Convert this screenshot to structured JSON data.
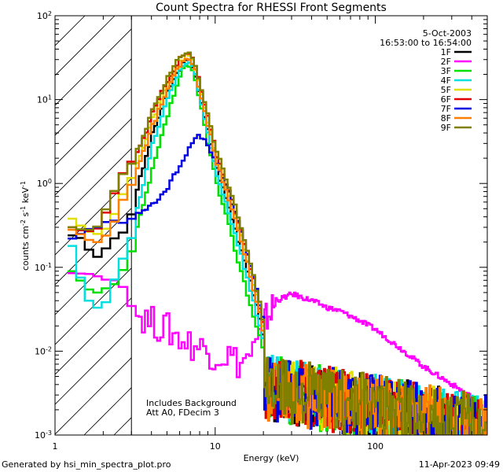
{
  "chart_data": {
    "type": "line",
    "title": "Count Spectra for RHESSI Front Segments",
    "xlabel": "Energy (keV)",
    "ylabel_main": "counts cm",
    "ylabel_sup1": "-2",
    "ylabel_mid1": " s",
    "ylabel_sup2": "-1",
    "ylabel_mid2": " keV",
    "ylabel_sup3": "-1",
    "xscale": "log",
    "yscale": "log",
    "xlim": [
      1,
      500
    ],
    "ylim": [
      0.001,
      100
    ],
    "x_ticks": [
      {
        "value": 1,
        "label": "1"
      },
      {
        "value": 10,
        "label": "10"
      },
      {
        "value": 100,
        "label": "100"
      }
    ],
    "y_ticks": [
      {
        "value": 0.001,
        "base": "10",
        "exp": "-3"
      },
      {
        "value": 0.01,
        "base": "10",
        "exp": "-2"
      },
      {
        "value": 0.1,
        "base": "10",
        "exp": "-1"
      },
      {
        "value": 1,
        "base": "10",
        "exp": "0"
      },
      {
        "value": 10,
        "base": "10",
        "exp": "1"
      },
      {
        "value": 100,
        "base": "10",
        "exp": "2"
      }
    ],
    "hatch_region_kev": [
      1,
      3
    ],
    "info_date": "5-Oct-2003",
    "info_time": "16:53:00 to 16:54:00",
    "annotation_line1": "Includes Background",
    "annotation_line2": "Att A0, FDecim 3",
    "series": [
      {
        "name": "1F",
        "color": "#000000",
        "base": [
          [
            1.2,
            0.24
          ],
          [
            1.4,
            0.22
          ],
          [
            1.6,
            0.14
          ],
          [
            1.8,
            0.13
          ],
          [
            2.0,
            0.18
          ],
          [
            2.3,
            0.24
          ],
          [
            2.6,
            0.27
          ],
          [
            3.0,
            0.6
          ],
          [
            3.4,
            1.3
          ],
          [
            4.0,
            4.0
          ],
          [
            5.0,
            13
          ],
          [
            6.0,
            25
          ],
          [
            6.6,
            30
          ],
          [
            7.2,
            24
          ],
          [
            8.0,
            9
          ],
          [
            9.0,
            3.5
          ],
          [
            10,
            1.5
          ],
          [
            12,
            0.5
          ],
          [
            14,
            0.18
          ],
          [
            16,
            0.08
          ],
          [
            18,
            0.03
          ],
          [
            20,
            0.012
          ]
        ]
      },
      {
        "name": "2F",
        "color": "#ff00ff",
        "base": [
          [
            1.2,
            0.085
          ],
          [
            1.6,
            0.083
          ],
          [
            2.0,
            0.07
          ],
          [
            2.4,
            0.07
          ],
          [
            2.8,
            0.035
          ],
          [
            3.2,
            0.028
          ],
          [
            4.0,
            0.022
          ],
          [
            5.0,
            0.018
          ],
          [
            6.0,
            0.014
          ],
          [
            7.0,
            0.012
          ],
          [
            8.0,
            0.011
          ],
          [
            10,
            0.009
          ],
          [
            12,
            0.009
          ],
          [
            14,
            0.007
          ],
          [
            16,
            0.009
          ],
          [
            18,
            0.012
          ],
          [
            20,
            0.022
          ],
          [
            24,
            0.04
          ],
          [
            30,
            0.048
          ],
          [
            40,
            0.04
          ],
          [
            50,
            0.033
          ],
          [
            60,
            0.03
          ],
          [
            80,
            0.023
          ],
          [
            100,
            0.018
          ],
          [
            150,
            0.01
          ],
          [
            200,
            0.0065
          ],
          [
            300,
            0.004
          ],
          [
            400,
            0.0028
          ],
          [
            480,
            0.0022
          ]
        ]
      },
      {
        "name": "3F",
        "color": "#00e000",
        "base": [
          [
            1.2,
            0.09
          ],
          [
            1.4,
            0.065
          ],
          [
            1.6,
            0.05
          ],
          [
            1.8,
            0.05
          ],
          [
            2.0,
            0.058
          ],
          [
            2.3,
            0.065
          ],
          [
            2.6,
            0.11
          ],
          [
            3.0,
            0.2
          ],
          [
            3.4,
            0.45
          ],
          [
            4.0,
            1.5
          ],
          [
            5.0,
            7
          ],
          [
            6.0,
            21
          ],
          [
            6.6,
            25
          ],
          [
            7.2,
            20
          ],
          [
            8.0,
            8
          ],
          [
            9.0,
            2.5
          ],
          [
            10,
            1.0
          ],
          [
            12,
            0.3
          ],
          [
            14,
            0.1
          ],
          [
            16,
            0.04
          ],
          [
            18,
            0.018
          ],
          [
            20,
            0.01
          ]
        ]
      },
      {
        "name": "4F",
        "color": "#00e0e0",
        "base": [
          [
            1.2,
            0.18
          ],
          [
            1.4,
            0.06
          ],
          [
            1.6,
            0.033
          ],
          [
            1.8,
            0.033
          ],
          [
            2.0,
            0.04
          ],
          [
            2.3,
            0.09
          ],
          [
            2.6,
            0.15
          ],
          [
            3.0,
            0.3
          ],
          [
            3.4,
            0.8
          ],
          [
            4.0,
            3.0
          ],
          [
            5.0,
            11
          ],
          [
            6.0,
            24
          ],
          [
            6.6,
            28
          ],
          [
            7.2,
            23
          ],
          [
            8.0,
            9
          ],
          [
            9.0,
            3.2
          ],
          [
            10,
            1.3
          ],
          [
            12,
            0.45
          ],
          [
            14,
            0.16
          ],
          [
            16,
            0.06
          ],
          [
            18,
            0.025
          ],
          [
            20,
            0.012
          ]
        ]
      },
      {
        "name": "5F",
        "color": "#e0e000",
        "base": [
          [
            1.2,
            0.38
          ],
          [
            1.4,
            0.3
          ],
          [
            1.6,
            0.25
          ],
          [
            1.8,
            0.25
          ],
          [
            2.0,
            0.3
          ],
          [
            2.3,
            0.5
          ],
          [
            2.6,
            0.9
          ],
          [
            3.0,
            1.4
          ],
          [
            3.4,
            2.5
          ],
          [
            4.0,
            6.0
          ],
          [
            5.0,
            16
          ],
          [
            6.0,
            30
          ],
          [
            6.6,
            34
          ],
          [
            7.2,
            28
          ],
          [
            8.0,
            12
          ],
          [
            9.0,
            4.5
          ],
          [
            10,
            2.0
          ],
          [
            12,
            0.7
          ],
          [
            14,
            0.26
          ],
          [
            16,
            0.1
          ],
          [
            18,
            0.04
          ],
          [
            20,
            0.015
          ]
        ]
      },
      {
        "name": "6F",
        "color": "#e00000",
        "base": [
          [
            1.2,
            0.3
          ],
          [
            1.4,
            0.27
          ],
          [
            1.6,
            0.27
          ],
          [
            1.8,
            0.3
          ],
          [
            2.0,
            0.5
          ],
          [
            2.3,
            0.9
          ],
          [
            2.6,
            1.6
          ],
          [
            3.0,
            2.0
          ],
          [
            3.4,
            3.0
          ],
          [
            4.0,
            7.0
          ],
          [
            5.0,
            18
          ],
          [
            6.0,
            32
          ],
          [
            6.6,
            36
          ],
          [
            7.2,
            30
          ],
          [
            8.0,
            13
          ],
          [
            9.0,
            5.0
          ],
          [
            10,
            2.2
          ],
          [
            12,
            0.8
          ],
          [
            14,
            0.3
          ],
          [
            16,
            0.11
          ],
          [
            18,
            0.045
          ],
          [
            20,
            0.016
          ]
        ]
      },
      {
        "name": "7F",
        "color": "#0000e0",
        "base": [
          [
            1.2,
            0.22
          ],
          [
            1.4,
            0.26
          ],
          [
            1.6,
            0.3
          ],
          [
            1.8,
            0.3
          ],
          [
            2.0,
            0.36
          ],
          [
            2.3,
            0.36
          ],
          [
            2.6,
            0.33
          ],
          [
            3.0,
            0.42
          ],
          [
            3.4,
            0.48
          ],
          [
            4.0,
            0.55
          ],
          [
            5.0,
            0.9
          ],
          [
            6.0,
            1.8
          ],
          [
            7.0,
            3.0
          ],
          [
            7.6,
            3.6
          ],
          [
            8.4,
            3.4
          ],
          [
            9.0,
            2.6
          ],
          [
            10,
            1.7
          ],
          [
            12,
            0.75
          ],
          [
            14,
            0.32
          ],
          [
            16,
            0.12
          ],
          [
            18,
            0.05
          ],
          [
            20,
            0.018
          ]
        ]
      },
      {
        "name": "8F",
        "color": "#ff8000",
        "base": [
          [
            1.2,
            0.28
          ],
          [
            1.4,
            0.24
          ],
          [
            1.6,
            0.2
          ],
          [
            1.8,
            0.2
          ],
          [
            2.0,
            0.25
          ],
          [
            2.3,
            0.4
          ],
          [
            2.6,
            0.8
          ],
          [
            3.0,
            1.1
          ],
          [
            3.4,
            2.0
          ],
          [
            4.0,
            5.0
          ],
          [
            5.0,
            14
          ],
          [
            6.0,
            27
          ],
          [
            6.6,
            31
          ],
          [
            7.2,
            26
          ],
          [
            8.0,
            11
          ],
          [
            9.0,
            4.2
          ],
          [
            10,
            1.8
          ],
          [
            12,
            0.65
          ],
          [
            14,
            0.24
          ],
          [
            16,
            0.09
          ],
          [
            18,
            0.036
          ],
          [
            20,
            0.014
          ]
        ]
      },
      {
        "name": "9F",
        "color": "#808000",
        "base": [
          [
            1.2,
            0.3
          ],
          [
            1.4,
            0.28
          ],
          [
            1.6,
            0.28
          ],
          [
            1.8,
            0.32
          ],
          [
            2.0,
            0.55
          ],
          [
            2.3,
            0.95
          ],
          [
            2.6,
            1.5
          ],
          [
            3.0,
            1.9
          ],
          [
            3.4,
            3.2
          ],
          [
            4.0,
            7.5
          ],
          [
            5.0,
            19
          ],
          [
            6.0,
            34
          ],
          [
            6.6,
            38
          ],
          [
            7.2,
            31
          ],
          [
            8.0,
            14
          ],
          [
            9.0,
            5.5
          ],
          [
            10,
            2.4
          ],
          [
            12,
            0.9
          ],
          [
            14,
            0.34
          ],
          [
            16,
            0.13
          ],
          [
            18,
            0.05
          ],
          [
            20,
            0.018
          ]
        ]
      }
    ]
  },
  "footer": {
    "generated_by": "Generated by hsi_min_spectra_plot.pro",
    "timestamp": "11-Apr-2023 09:49"
  }
}
